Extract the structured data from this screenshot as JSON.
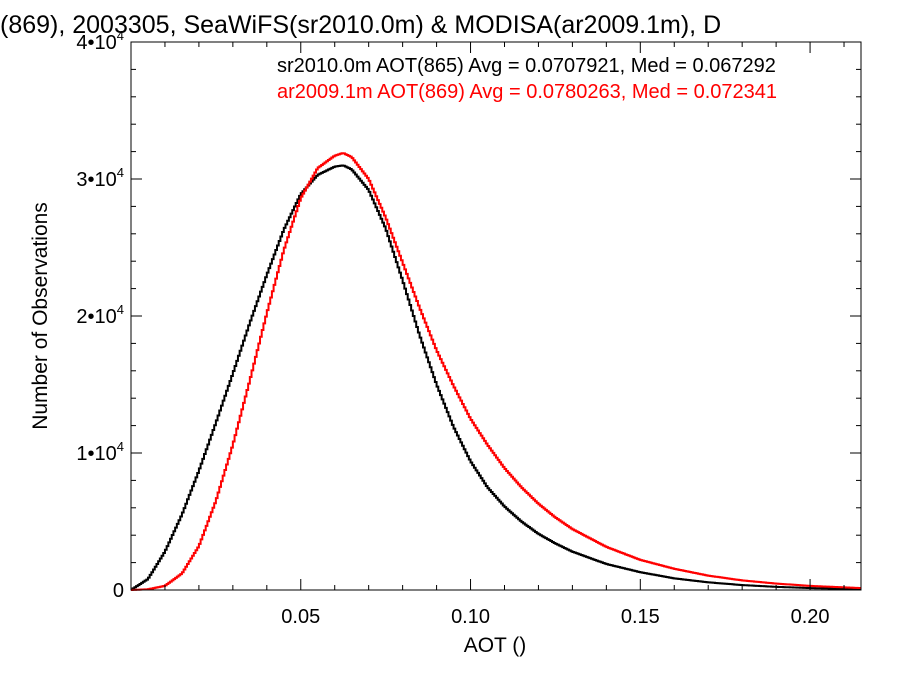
{
  "chart_data": {
    "type": "line",
    "title": "(869), 2003305, SeaWiFS(sr2010.0m) & MODISA(ar2009.1m), D",
    "xlabel": "AOT ()",
    "ylabel": "Number of Observations",
    "xlim": [
      0.0,
      0.215
    ],
    "ylim": [
      0,
      40000
    ],
    "x_ticks": [
      {
        "value": 0.05,
        "label": "0.05"
      },
      {
        "value": 0.1,
        "label": "0.10"
      },
      {
        "value": 0.15,
        "label": "0.15"
      },
      {
        "value": 0.2,
        "label": "0.20"
      }
    ],
    "y_ticks": [
      {
        "value": 0,
        "mantissa": "0",
        "exp": ""
      },
      {
        "value": 10000,
        "mantissa": "1•10",
        "exp": "4"
      },
      {
        "value": 20000,
        "mantissa": "2•10",
        "exp": "4"
      },
      {
        "value": 30000,
        "mantissa": "3•10",
        "exp": "4"
      },
      {
        "value": 40000,
        "mantissa": "4•10",
        "exp": "4"
      }
    ],
    "legend_placement": "top-right",
    "series": [
      {
        "name": "sr2010.0m",
        "legend_text": "sr2010.0m AOT(865) Avg = 0.0707921, Med = 0.067292",
        "color": "#000000",
        "x": [
          0.0,
          0.005,
          0.01,
          0.015,
          0.02,
          0.025,
          0.03,
          0.035,
          0.04,
          0.045,
          0.05,
          0.055,
          0.06,
          0.0625,
          0.065,
          0.07,
          0.075,
          0.08,
          0.085,
          0.09,
          0.095,
          0.1,
          0.105,
          0.11,
          0.115,
          0.12,
          0.125,
          0.13,
          0.14,
          0.15,
          0.16,
          0.17,
          0.18,
          0.19,
          0.2,
          0.215
        ],
        "y": [
          0,
          800,
          2800,
          5500,
          8700,
          12200,
          15800,
          19500,
          23000,
          26300,
          28900,
          30300,
          30900,
          31000,
          30700,
          29200,
          26400,
          22600,
          18600,
          15000,
          11900,
          9400,
          7500,
          6100,
          5000,
          4100,
          3400,
          2800,
          1900,
          1300,
          850,
          560,
          360,
          230,
          140,
          70
        ]
      },
      {
        "name": "ar2009.1m",
        "legend_text": "ar2009.1m AOT(869) Avg = 0.0780263, Med = 0.072341",
        "color": "#ff0000",
        "x": [
          0.0,
          0.005,
          0.01,
          0.015,
          0.02,
          0.025,
          0.03,
          0.035,
          0.04,
          0.045,
          0.05,
          0.055,
          0.06,
          0.0625,
          0.065,
          0.07,
          0.075,
          0.08,
          0.085,
          0.09,
          0.095,
          0.1,
          0.105,
          0.11,
          0.115,
          0.12,
          0.125,
          0.13,
          0.14,
          0.15,
          0.16,
          0.17,
          0.18,
          0.19,
          0.2,
          0.215
        ],
        "y": [
          0,
          50,
          300,
          1200,
          3200,
          6500,
          10600,
          15300,
          20200,
          24800,
          28600,
          30800,
          31700,
          31900,
          31600,
          30000,
          27200,
          23900,
          20600,
          17500,
          14900,
          12500,
          10600,
          8900,
          7500,
          6300,
          5300,
          4450,
          3150,
          2200,
          1550,
          1050,
          700,
          470,
          300,
          140
        ]
      }
    ]
  }
}
